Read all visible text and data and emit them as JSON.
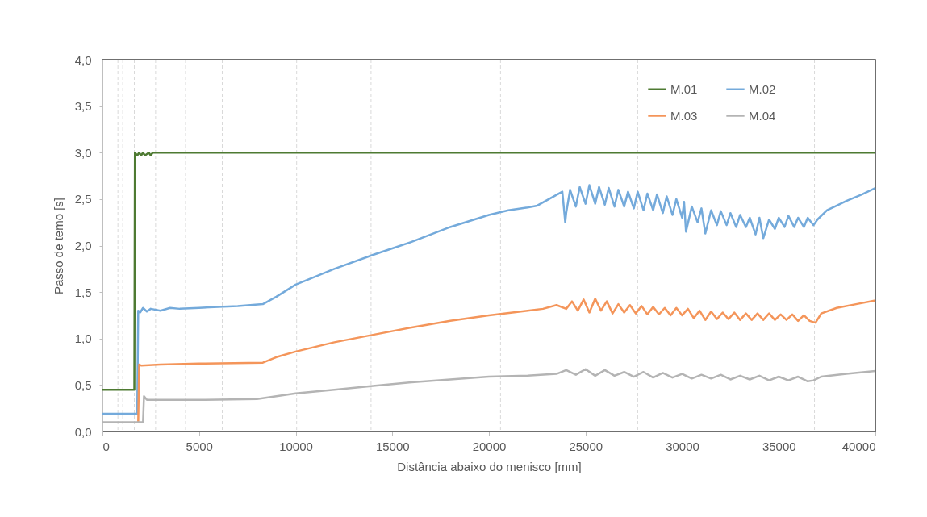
{
  "chart_data": {
    "type": "line",
    "xlabel": "Distância abaixo do menisco [mm]",
    "ylabel": "Passo de temo [s]",
    "xlim": [
      0,
      40000
    ],
    "xticks": [
      0,
      5000,
      10000,
      15000,
      20000,
      25000,
      30000,
      35000,
      40000
    ],
    "ylim": [
      0,
      4
    ],
    "yticks": [
      {
        "value": 0,
        "label": "0,0"
      },
      {
        "value": 0.5,
        "label": "0,5"
      },
      {
        "value": 1,
        "label": "1,0"
      },
      {
        "value": 1.5,
        "label": "1,5"
      },
      {
        "value": 2,
        "label": "2,0"
      },
      {
        "value": 2.5,
        "label": "2,5"
      },
      {
        "value": 3,
        "label": "3,0"
      },
      {
        "value": 3.5,
        "label": "3,5"
      },
      {
        "value": 4,
        "label": "4,0"
      }
    ],
    "grid": false,
    "legend": "top right",
    "marker": "none",
    "line_style": "solid",
    "ref_lines": [
      {
        "axis": "x",
        "value": 800,
        "color": "#d9d9d9",
        "line_style": "dashed"
      },
      {
        "axis": "x",
        "value": 1050,
        "color": "#d9d9d9",
        "line_style": "dashed"
      },
      {
        "axis": "x",
        "value": 1650,
        "color": "#d9d9d9",
        "line_style": "dashed"
      },
      {
        "axis": "x",
        "value": 2750,
        "color": "#d9d9d9",
        "line_style": "dashed"
      },
      {
        "axis": "x",
        "value": 4300,
        "color": "#d9d9d9",
        "line_style": "dashed"
      },
      {
        "axis": "x",
        "value": 6200,
        "color": "#d9d9d9",
        "line_style": "dashed"
      },
      {
        "axis": "x",
        "value": 10050,
        "color": "#d9d9d9",
        "line_style": "dashed"
      },
      {
        "axis": "x",
        "value": 13900,
        "color": "#d9d9d9",
        "line_style": "dashed"
      },
      {
        "axis": "x",
        "value": 20600,
        "color": "#d9d9d9",
        "line_style": "dashed"
      },
      {
        "axis": "x",
        "value": 27700,
        "color": "#d9d9d9",
        "line_style": "dashed"
      },
      {
        "axis": "x",
        "value": 36850,
        "color": "#d9d9d9",
        "line_style": "dashed"
      }
    ],
    "series": [
      {
        "name": "M.01",
        "color": "#4e7a32",
        "x": [
          0,
          1650,
          1680,
          1800,
          1900,
          2000,
          2100,
          2200,
          2400,
          2500,
          2600,
          40000
        ],
        "values": [
          0.45,
          0.45,
          3.0,
          2.97,
          3.0,
          2.97,
          3.0,
          2.97,
          3.0,
          2.97,
          3.0,
          3.0
        ]
      },
      {
        "name": "M.02",
        "color": "#74aadb",
        "x": [
          0,
          1800,
          1850,
          1950,
          2100,
          2300,
          2500,
          3000,
          3500,
          4000,
          5000,
          6000,
          7000,
          8300,
          9000,
          10000,
          12000,
          14000,
          15000,
          16000,
          17000,
          18000,
          20000,
          21000,
          22000,
          22500,
          23800,
          23950,
          24000,
          24200,
          24500,
          24700,
          25000,
          25200,
          25500,
          25700,
          26000,
          26200,
          26500,
          26700,
          27000,
          27200,
          27500,
          27700,
          28000,
          28200,
          28500,
          28700,
          29000,
          29200,
          29500,
          29700,
          30000,
          30100,
          30200,
          30500,
          30800,
          31000,
          31200,
          31500,
          31800,
          32000,
          32300,
          32500,
          32800,
          33000,
          33300,
          33500,
          33800,
          34000,
          34200,
          34500,
          34800,
          35000,
          35300,
          35500,
          35800,
          36000,
          36300,
          36500,
          36800,
          37000,
          37500,
          38500,
          39300,
          40000
        ],
        "values": [
          0.19,
          0.19,
          1.3,
          1.28,
          1.33,
          1.29,
          1.32,
          1.3,
          1.33,
          1.32,
          1.33,
          1.34,
          1.35,
          1.37,
          1.45,
          1.58,
          1.75,
          1.9,
          1.97,
          2.04,
          2.12,
          2.2,
          2.33,
          2.38,
          2.41,
          2.43,
          2.58,
          2.25,
          2.35,
          2.6,
          2.42,
          2.63,
          2.45,
          2.65,
          2.45,
          2.63,
          2.44,
          2.62,
          2.42,
          2.6,
          2.42,
          2.58,
          2.4,
          2.58,
          2.38,
          2.56,
          2.38,
          2.55,
          2.35,
          2.53,
          2.33,
          2.5,
          2.3,
          2.47,
          2.15,
          2.42,
          2.25,
          2.4,
          2.13,
          2.38,
          2.22,
          2.37,
          2.22,
          2.35,
          2.2,
          2.33,
          2.2,
          2.3,
          2.12,
          2.3,
          2.08,
          2.28,
          2.18,
          2.3,
          2.2,
          2.32,
          2.2,
          2.3,
          2.2,
          2.3,
          2.22,
          2.28,
          2.38,
          2.48,
          2.55,
          2.62
        ]
      },
      {
        "name": "M.03",
        "color": "#f4955a",
        "x": [
          1850,
          1900,
          2000,
          3000,
          5000,
          8300,
          9000,
          10000,
          12000,
          14000,
          16000,
          18000,
          20000,
          22000,
          22800,
          23500,
          24000,
          24300,
          24600,
          24900,
          25200,
          25500,
          25800,
          26100,
          26400,
          26700,
          27000,
          27300,
          27600,
          27900,
          28200,
          28500,
          28800,
          29100,
          29400,
          29700,
          30000,
          30300,
          30600,
          30900,
          31200,
          31500,
          31800,
          32100,
          32400,
          32700,
          33000,
          33300,
          33600,
          33900,
          34200,
          34500,
          34800,
          35100,
          35400,
          35700,
          36000,
          36300,
          36600,
          36900,
          37200,
          38000,
          39000,
          40000
        ],
        "values": [
          0.1,
          0.72,
          0.71,
          0.72,
          0.73,
          0.74,
          0.8,
          0.86,
          0.96,
          1.04,
          1.12,
          1.19,
          1.25,
          1.3,
          1.32,
          1.36,
          1.32,
          1.4,
          1.3,
          1.42,
          1.28,
          1.43,
          1.3,
          1.4,
          1.27,
          1.37,
          1.28,
          1.36,
          1.27,
          1.35,
          1.26,
          1.34,
          1.26,
          1.33,
          1.25,
          1.33,
          1.25,
          1.32,
          1.22,
          1.3,
          1.2,
          1.29,
          1.21,
          1.28,
          1.21,
          1.28,
          1.2,
          1.27,
          1.2,
          1.27,
          1.2,
          1.27,
          1.2,
          1.26,
          1.2,
          1.26,
          1.19,
          1.25,
          1.19,
          1.17,
          1.27,
          1.33,
          1.37,
          1.41
        ]
      },
      {
        "name": "M.04",
        "color": "#b4b4b4",
        "x": [
          0,
          2100,
          2150,
          2300,
          5000,
          8000,
          9000,
          10000,
          12000,
          14000,
          16000,
          18000,
          20000,
          22000,
          23500,
          24000,
          24500,
          25000,
          25500,
          26000,
          26500,
          27000,
          27500,
          28000,
          28500,
          29000,
          29500,
          30000,
          30500,
          31000,
          31500,
          32000,
          32500,
          33000,
          33500,
          34000,
          34500,
          35000,
          35500,
          36000,
          36500,
          36800,
          37200,
          38500,
          40000
        ],
        "values": [
          0.1,
          0.1,
          0.38,
          0.34,
          0.34,
          0.35,
          0.38,
          0.41,
          0.45,
          0.49,
          0.53,
          0.56,
          0.59,
          0.6,
          0.62,
          0.66,
          0.61,
          0.67,
          0.6,
          0.66,
          0.6,
          0.64,
          0.59,
          0.64,
          0.58,
          0.63,
          0.58,
          0.62,
          0.57,
          0.61,
          0.57,
          0.61,
          0.56,
          0.6,
          0.56,
          0.6,
          0.55,
          0.59,
          0.55,
          0.59,
          0.54,
          0.55,
          0.59,
          0.62,
          0.65
        ]
      }
    ]
  }
}
